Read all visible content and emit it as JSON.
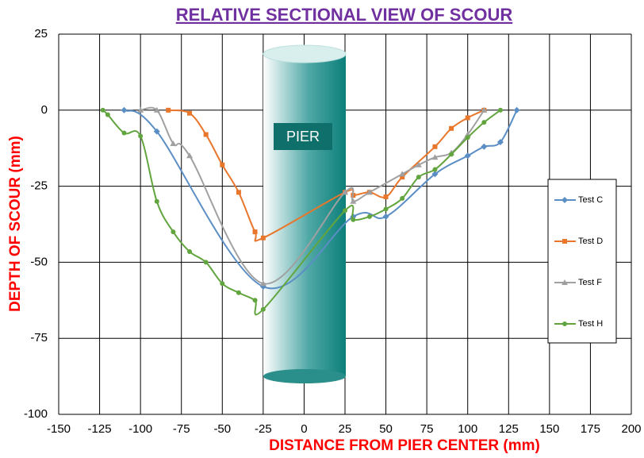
{
  "chart_data": {
    "type": "line",
    "smooth": true,
    "title": "RELATIVE SECTIONAL VIEW OF SCOUR",
    "x_label": "DISTANCE FROM PIER CENTER (mm)",
    "y_label": "DEPTH OF SCOUR (mm)",
    "annotation": "PIER",
    "xlim": [
      -150,
      200
    ],
    "xticks": [
      -150,
      -125,
      -100,
      -75,
      -50,
      -25,
      0,
      25,
      50,
      75,
      100,
      125,
      150,
      175,
      200
    ],
    "ylim": [
      -100,
      25
    ],
    "yticks": [
      25,
      0,
      -25,
      -50,
      -75,
      -100
    ],
    "grid": true,
    "legend": "right",
    "series": [
      {
        "name": "Test C",
        "color": "#5b8ec4",
        "marker": "diamond",
        "x": [
          -110,
          -90,
          -25,
          30,
          50,
          80,
          100,
          110,
          120,
          130
        ],
        "values": [
          0,
          -7,
          -58,
          -35,
          -35,
          -21,
          -15,
          -12,
          -10.5,
          0
        ]
      },
      {
        "name": "Test D",
        "color": "#e8762b",
        "marker": "square",
        "x": [
          -83,
          -70,
          -60,
          -50,
          -40,
          -30,
          -25,
          25,
          30,
          40,
          50,
          60,
          80,
          90,
          100,
          110
        ],
        "values": [
          0,
          -1,
          -8,
          -18,
          -27,
          -40,
          -42,
          -27,
          -28,
          -27,
          -28.5,
          -22,
          -12,
          -6,
          -2.5,
          0
        ]
      },
      {
        "name": "Test F",
        "color": "#a0a0a0",
        "marker": "triangle",
        "x": [
          -100,
          -90,
          -80,
          -70,
          -25,
          25,
          30,
          40,
          60,
          70,
          80,
          90,
          100,
          110
        ],
        "values": [
          0,
          0,
          -11,
          -15,
          -57,
          -27,
          -30,
          -27,
          -21,
          -18,
          -15.5,
          -14,
          -8,
          0
        ]
      },
      {
        "name": "Test H",
        "color": "#62a53f",
        "marker": "circle",
        "x": [
          -123,
          -120,
          -110,
          -100,
          -90,
          -80,
          -70,
          -60,
          -50,
          -40,
          -30,
          -25,
          25,
          30,
          40,
          50,
          60,
          70,
          80,
          90,
          100,
          110,
          120
        ],
        "values": [
          0,
          -1.5,
          -7.5,
          -8.5,
          -30,
          -40,
          -46.5,
          -50,
          -57,
          -60,
          -62.5,
          -65.5,
          -33,
          -36,
          -35,
          -32.5,
          -29,
          -22,
          -19.5,
          -14.5,
          -9,
          -4,
          0
        ]
      }
    ]
  }
}
